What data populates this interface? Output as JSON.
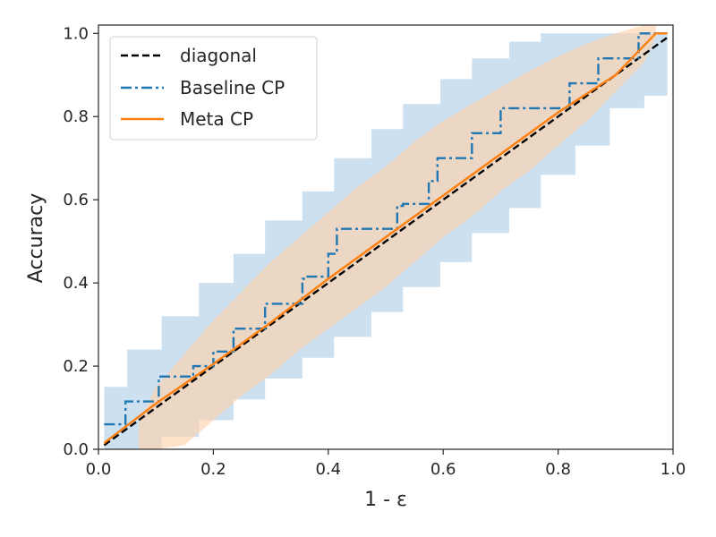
{
  "chart_data": {
    "type": "line",
    "xlabel": "1 - ε",
    "ylabel": "Accuracy",
    "xlim": [
      0.0,
      1.0
    ],
    "ylim": [
      0.0,
      1.02
    ],
    "xticks": [
      "0.0",
      "0.2",
      "0.4",
      "0.6",
      "0.8",
      "1.0"
    ],
    "yticks": [
      "0.0",
      "0.2",
      "0.4",
      "0.6",
      "0.8",
      "1.0"
    ],
    "grid": false,
    "legend": {
      "placement": "top-left",
      "entries": [
        "diagonal",
        "Baseline CP",
        "Meta CP"
      ]
    },
    "colors": {
      "diagonal": "#000000",
      "baseline": "#1f77b4",
      "meta": "#ff7f0e",
      "baseline_band": "#aecde6",
      "meta_band": "#ffd1a9"
    },
    "series": [
      {
        "name": "diagonal",
        "style": "dashed",
        "x": [
          0.01,
          0.99
        ],
        "y": [
          0.01,
          0.99
        ]
      },
      {
        "name": "Baseline CP",
        "style": "dashdot",
        "x": [
          0.01,
          0.047,
          0.047,
          0.105,
          0.105,
          0.165,
          0.165,
          0.2,
          0.2,
          0.235,
          0.235,
          0.275,
          0.275,
          0.29,
          0.29,
          0.34,
          0.34,
          0.355,
          0.355,
          0.36,
          0.36,
          0.4,
          0.4,
          0.415,
          0.415,
          0.47,
          0.47,
          0.52,
          0.52,
          0.53,
          0.53,
          0.575,
          0.575,
          0.59,
          0.59,
          0.65,
          0.65,
          0.7,
          0.7,
          0.76,
          0.76,
          0.82,
          0.82,
          0.83,
          0.83,
          0.87,
          0.87,
          0.9,
          0.9,
          0.94,
          0.94,
          0.975,
          0.99
        ],
        "y": [
          0.06,
          0.06,
          0.115,
          0.115,
          0.175,
          0.175,
          0.2,
          0.2,
          0.235,
          0.235,
          0.29,
          0.29,
          0.29,
          0.29,
          0.35,
          0.35,
          0.35,
          0.35,
          0.41,
          0.41,
          0.415,
          0.415,
          0.47,
          0.47,
          0.53,
          0.53,
          0.53,
          0.53,
          0.585,
          0.585,
          0.59,
          0.59,
          0.645,
          0.645,
          0.7,
          0.7,
          0.76,
          0.76,
          0.82,
          0.82,
          0.82,
          0.82,
          0.88,
          0.88,
          0.88,
          0.88,
          0.94,
          0.94,
          0.94,
          0.94,
          1.0,
          1.0,
          1.0
        ]
      },
      {
        "name": "Meta CP",
        "style": "solid",
        "x": [
          0.01,
          0.1,
          0.2,
          0.3,
          0.4,
          0.5,
          0.6,
          0.7,
          0.8,
          0.9,
          0.97,
          0.99
        ],
        "y": [
          0.015,
          0.11,
          0.205,
          0.305,
          0.41,
          0.51,
          0.61,
          0.71,
          0.81,
          0.9,
          1.0,
          1.0
        ]
      }
    ],
    "bands": [
      {
        "series": "Baseline CP",
        "upper": {
          "x": [
            0.01,
            0.05,
            0.05,
            0.1,
            0.1,
            0.11,
            0.11,
            0.16,
            0.16,
            0.175,
            0.175,
            0.22,
            0.22,
            0.235,
            0.235,
            0.28,
            0.28,
            0.29,
            0.29,
            0.34,
            0.34,
            0.355,
            0.355,
            0.4,
            0.4,
            0.41,
            0.41,
            0.46,
            0.46,
            0.475,
            0.475,
            0.52,
            0.52,
            0.53,
            0.53,
            0.58,
            0.58,
            0.595,
            0.595,
            0.64,
            0.64,
            0.65,
            0.65,
            0.7,
            0.7,
            0.715,
            0.715,
            0.76,
            0.76,
            0.77,
            0.77,
            0.82,
            0.82,
            0.83,
            0.83,
            0.88,
            0.88,
            0.89,
            0.89,
            0.94,
            0.94,
            0.95,
            0.99
          ],
          "y": [
            0.15,
            0.15,
            0.24,
            0.24,
            0.24,
            0.24,
            0.32,
            0.32,
            0.32,
            0.32,
            0.4,
            0.4,
            0.4,
            0.4,
            0.47,
            0.47,
            0.47,
            0.47,
            0.55,
            0.55,
            0.55,
            0.55,
            0.62,
            0.62,
            0.62,
            0.62,
            0.7,
            0.7,
            0.7,
            0.7,
            0.77,
            0.77,
            0.77,
            0.77,
            0.83,
            0.83,
            0.83,
            0.83,
            0.89,
            0.89,
            0.89,
            0.89,
            0.94,
            0.94,
            0.94,
            0.94,
            0.98,
            0.98,
            0.98,
            0.98,
            1.0,
            1.0,
            1.0,
            1.0,
            1.0,
            1.0,
            1.0,
            1.0,
            1.0,
            1.0,
            1.0,
            1.0,
            1.0
          ]
        },
        "lower": {
          "x": [
            0.01,
            0.1,
            0.1,
            0.11,
            0.11,
            0.16,
            0.16,
            0.175,
            0.175,
            0.22,
            0.22,
            0.235,
            0.235,
            0.28,
            0.28,
            0.29,
            0.29,
            0.34,
            0.34,
            0.355,
            0.355,
            0.4,
            0.4,
            0.41,
            0.41,
            0.46,
            0.46,
            0.475,
            0.475,
            0.52,
            0.52,
            0.53,
            0.53,
            0.58,
            0.58,
            0.595,
            0.595,
            0.64,
            0.64,
            0.65,
            0.65,
            0.7,
            0.7,
            0.715,
            0.715,
            0.76,
            0.76,
            0.77,
            0.77,
            0.82,
            0.82,
            0.83,
            0.83,
            0.88,
            0.88,
            0.89,
            0.89,
            0.94,
            0.94,
            0.95,
            0.95,
            0.99
          ],
          "y": [
            0.0,
            0.0,
            0.0,
            0.0,
            0.03,
            0.03,
            0.03,
            0.03,
            0.07,
            0.07,
            0.07,
            0.07,
            0.12,
            0.12,
            0.12,
            0.12,
            0.17,
            0.17,
            0.17,
            0.17,
            0.22,
            0.22,
            0.22,
            0.22,
            0.27,
            0.27,
            0.27,
            0.27,
            0.33,
            0.33,
            0.33,
            0.33,
            0.39,
            0.39,
            0.39,
            0.39,
            0.45,
            0.45,
            0.45,
            0.45,
            0.52,
            0.52,
            0.52,
            0.52,
            0.58,
            0.58,
            0.58,
            0.58,
            0.66,
            0.66,
            0.66,
            0.66,
            0.73,
            0.73,
            0.73,
            0.73,
            0.82,
            0.82,
            0.82,
            0.82,
            0.85,
            0.85
          ]
        }
      },
      {
        "series": "Meta CP",
        "upper": {
          "x": [
            0.07,
            0.1,
            0.15,
            0.2,
            0.25,
            0.3,
            0.35,
            0.4,
            0.45,
            0.5,
            0.55,
            0.6,
            0.65,
            0.7,
            0.75,
            0.8,
            0.85,
            0.9,
            0.95,
            0.97
          ],
          "y": [
            0.06,
            0.15,
            0.23,
            0.31,
            0.38,
            0.45,
            0.51,
            0.57,
            0.63,
            0.68,
            0.74,
            0.79,
            0.83,
            0.87,
            0.91,
            0.945,
            0.975,
            1.0,
            1.02,
            1.02
          ]
        },
        "lower": {
          "x": [
            0.07,
            0.1,
            0.15,
            0.2,
            0.25,
            0.3,
            0.35,
            0.4,
            0.45,
            0.5,
            0.55,
            0.6,
            0.65,
            0.7,
            0.75,
            0.8,
            0.85,
            0.9,
            0.95,
            0.97
          ],
          "y": [
            0.0,
            0.0,
            0.01,
            0.07,
            0.13,
            0.18,
            0.24,
            0.29,
            0.34,
            0.39,
            0.45,
            0.51,
            0.56,
            0.62,
            0.67,
            0.73,
            0.79,
            0.86,
            0.93,
            0.99
          ]
        }
      }
    ]
  }
}
